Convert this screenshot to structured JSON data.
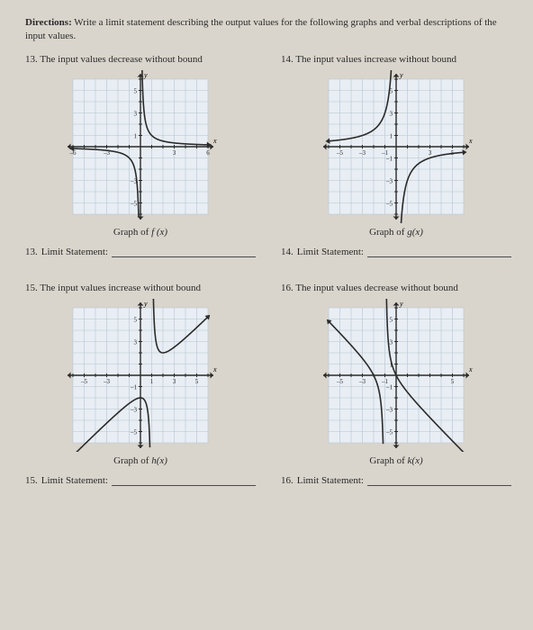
{
  "directions_label": "Directions:",
  "directions_text": " Write a limit statement describing the output values for the following graphs and verbal descriptions of the input values.",
  "q13": {
    "num": "13.",
    "title": "The input values decrease without bound",
    "caption_pre": "Graph of ",
    "caption_fn": "f (x)",
    "stmt_num": "13.",
    "stmt_label": "Limit Statement:",
    "chart": {
      "type": "reciprocal",
      "grid_bg": "#e8eef4",
      "grid_line": "#b8c4d0",
      "axis_color": "#2a2a2a",
      "curve_color": "#2a2a2a",
      "size": 150,
      "cells": 12,
      "hshift": 0,
      "vshift": 0,
      "k": 1,
      "slope": 0,
      "xlabels": {
        "-6": "–6",
        "-3": "–3",
        "3": "3",
        "6": "6"
      },
      "ylabels": {
        "5": "5",
        "3": "3",
        "1": "1",
        "-3": "–3",
        "-5": "–5"
      }
    }
  },
  "q14": {
    "num": "14.",
    "title": "The input values increase without bound",
    "caption_pre": "Graph of ",
    "caption_fn": "g(x)",
    "stmt_num": "14.",
    "stmt_label": "Limit Statement:",
    "chart": {
      "type": "reciprocal-shifted",
      "grid_bg": "#e8eef4",
      "grid_line": "#b8c4d0",
      "axis_color": "#2a2a2a",
      "curve_color": "#2a2a2a",
      "size": 150,
      "cells": 12,
      "hshift": 0,
      "vshift": 0,
      "k": -3,
      "slope": 0,
      "xlabels": {
        "-5": "–5",
        "-3": "–3",
        "-1": "–1",
        "3": "3",
        "5": "5"
      },
      "ylabels": {
        "5": "5",
        "3": "3",
        "1": "1",
        "-1": "–1",
        "-3": "–3",
        "-5": "–5"
      }
    }
  },
  "q15": {
    "num": "15.",
    "title": "The input values increase without bound",
    "caption_pre": "Graph of ",
    "caption_fn": "h(x)",
    "stmt_num": "15.",
    "stmt_label": "Limit Statement:",
    "chart": {
      "type": "oblique-recip",
      "grid_bg": "#e8eef4",
      "grid_line": "#b8c4d0",
      "axis_color": "#2a2a2a",
      "curve_color": "#2a2a2a",
      "size": 150,
      "cells": 12,
      "hshift": 1,
      "vshift": 0,
      "k": 1,
      "slope": 1,
      "xlabels": {
        "-5": "–5",
        "-3": "–3",
        "1": "1",
        "3": "3",
        "5": "5"
      },
      "ylabels": {
        "5": "5",
        "3": "3",
        "-1": "–1",
        "-3": "–3",
        "-5": "–5"
      }
    }
  },
  "q16": {
    "num": "16.",
    "title": "The input values decrease without bound",
    "caption_pre": "Graph of ",
    "caption_fn": "k(x)",
    "stmt_num": "16.",
    "stmt_label": "Limit Statement:",
    "chart": {
      "type": "oblique-recip-neg",
      "grid_bg": "#e8eef4",
      "grid_line": "#b8c4d0",
      "axis_color": "#2a2a2a",
      "curve_color": "#2a2a2a",
      "size": 150,
      "cells": 12,
      "hshift": -1,
      "vshift": 0,
      "k": 1,
      "slope": -1,
      "xlabels": {
        "-5": "–5",
        "-3": "–3",
        "-1": "–1",
        "5": "5"
      },
      "ylabels": {
        "5": "5",
        "3": "3",
        "1": "1",
        "-1": "–1",
        "-3": "–3",
        "-5": "–5"
      }
    }
  }
}
